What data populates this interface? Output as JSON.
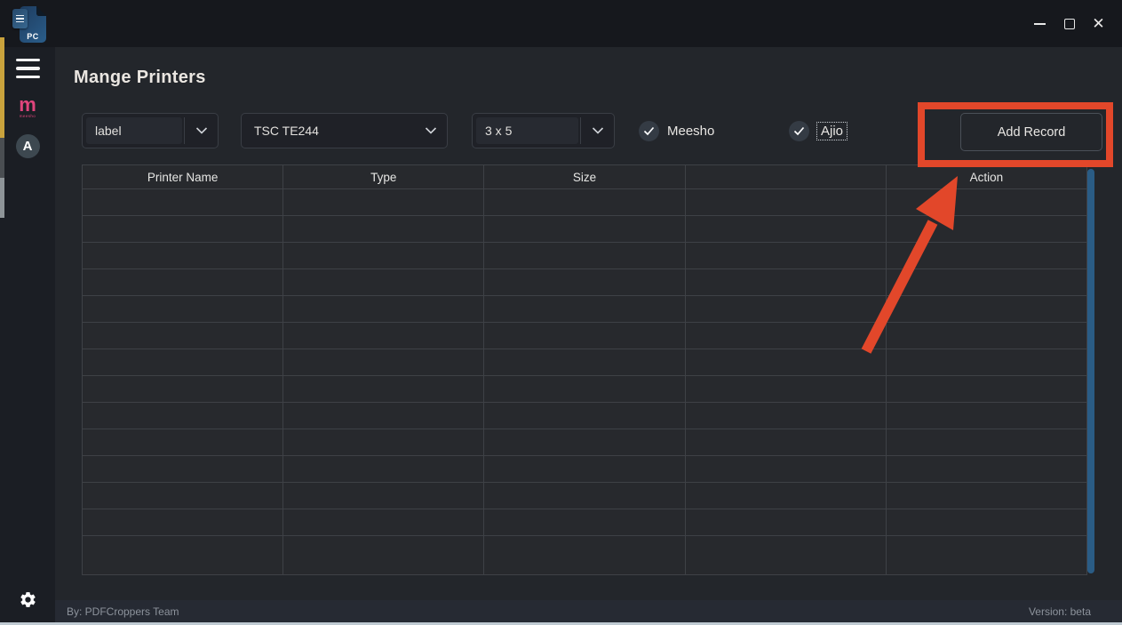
{
  "app": {
    "icon_text": "PC"
  },
  "window_controls": {
    "close_glyph": "✕"
  },
  "sidebar": {
    "items": [
      {
        "name": "menu"
      },
      {
        "name": "meesho",
        "glyph": "m",
        "sub": "meesho"
      },
      {
        "name": "ajio",
        "glyph": "A"
      },
      {
        "name": "settings"
      }
    ]
  },
  "header": {
    "title": "Mange Printers"
  },
  "toolbar": {
    "dropdowns": [
      {
        "value": "label"
      },
      {
        "value": "TSC TE244"
      },
      {
        "value": "3 x 5"
      }
    ],
    "checkboxes": [
      {
        "label": "Meesho",
        "checked": true,
        "focused": false
      },
      {
        "label": "Ajio",
        "checked": true,
        "focused": true
      }
    ],
    "add_record_label": "Add Record"
  },
  "table": {
    "columns": [
      "Printer Name",
      "Type",
      "Size",
      "",
      "Action"
    ],
    "empty_row_count": 14,
    "rows": []
  },
  "footer": {
    "left": "By: PDFCroppers Team",
    "right": "Version: beta"
  },
  "colors": {
    "annotation_red": "#e2472a",
    "scrollbar_blue": "#2a5c85",
    "meesho_pink": "#e0457c",
    "titlebar_bg": "#16181d",
    "sidebar_bg": "#1b1e24",
    "main_bg": "#23262b",
    "statusbar_bg": "#262a33"
  }
}
